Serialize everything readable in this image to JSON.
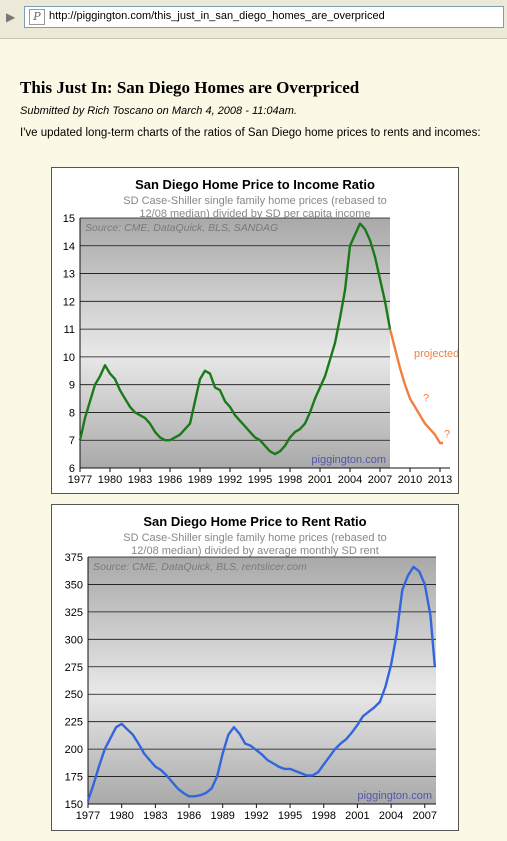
{
  "browser": {
    "url": "http://piggington.com/this_just_in_san_diego_homes_are_overpriced",
    "favicon_icon": "piggington-favicon-icon"
  },
  "post": {
    "title": "This Just In: San Diego Homes are Overpriced",
    "byline": "Submitted by Rich Toscano on March 4, 2008 - 11:04am.",
    "intro": "I've updated long-term charts of the ratios of San Diego home prices to rents and incomes:"
  },
  "chart_data": [
    {
      "type": "line",
      "title": "San Diego Home Price to Income Ratio",
      "subtitle": [
        "SD Case-Shiller single family home prices (rebased to",
        "12/08 median) divided by SD per capita income"
      ],
      "source_note": "Source: CME, DataQuick, BLS, SANDAG",
      "watermark": "piggington.com",
      "annotation": "projected",
      "question_marks": [
        "?",
        "?"
      ],
      "xlim": [
        1977,
        2014
      ],
      "ylim": [
        6,
        15
      ],
      "x_ticks": [
        "1977",
        "1980",
        "1983",
        "1986",
        "1989",
        "1992",
        "1995",
        "1998",
        "2001",
        "2004",
        "2007",
        "2010",
        "2013"
      ],
      "y_ticks": [
        "6",
        "7",
        "8",
        "9",
        "10",
        "11",
        "12",
        "13",
        "14",
        "15"
      ],
      "colors": {
        "history": "#1a7a1a",
        "projection": "#f08040",
        "plot_top": "#a9a9a9",
        "plot_mid": "#e8e8e8"
      },
      "series": [
        {
          "x": [
            1977.0,
            1977.5,
            1978.0,
            1978.5,
            1979.0,
            1979.5,
            1980.0,
            1980.5,
            1981.0,
            1981.5,
            1982.0,
            1982.5,
            1983.0,
            1983.5,
            1984.0,
            1984.5,
            1985.0,
            1985.5,
            1986.0,
            1986.5,
            1987.0,
            1987.5,
            1988.0,
            1988.5,
            1989.0,
            1989.5,
            1990.0,
            1990.5,
            1991.0,
            1991.5,
            1992.0,
            1992.5,
            1993.0,
            1993.5,
            1994.0,
            1994.5,
            1995.0,
            1995.5,
            1996.0,
            1996.5,
            1997.0,
            1997.5,
            1998.0,
            1998.5,
            1999.0,
            1999.5,
            2000.0,
            2000.5,
            2001.0,
            2001.5,
            2002.0,
            2002.5,
            2003.0,
            2003.5,
            2004.0,
            2004.5,
            2005.0,
            2005.5,
            2006.0,
            2006.5,
            2007.0,
            2007.5,
            2008.0
          ],
          "values": [
            7.0,
            7.8,
            8.4,
            9.0,
            9.3,
            9.7,
            9.4,
            9.2,
            8.8,
            8.5,
            8.2,
            8.0,
            7.9,
            7.8,
            7.6,
            7.3,
            7.1,
            7.0,
            7.0,
            7.1,
            7.2,
            7.4,
            7.6,
            8.4,
            9.2,
            9.5,
            9.4,
            8.9,
            8.8,
            8.4,
            8.2,
            7.9,
            7.7,
            7.5,
            7.3,
            7.1,
            7.0,
            6.8,
            6.6,
            6.5,
            6.6,
            6.8,
            7.1,
            7.3,
            7.4,
            7.6,
            8.0,
            8.5,
            8.9,
            9.3,
            9.9,
            10.5,
            11.4,
            12.4,
            14.0,
            14.4,
            14.8,
            14.6,
            14.2,
            13.6,
            12.8,
            12.0,
            11.0
          ]
        },
        {
          "x": [
            2008.0,
            2008.5,
            2009.0,
            2009.5,
            2010.0,
            2010.5,
            2011.0,
            2011.5,
            2012.0,
            2012.5,
            2013.0,
            2013.3
          ],
          "values": [
            11.0,
            10.3,
            9.6,
            9.0,
            8.5,
            8.2,
            7.9,
            7.6,
            7.4,
            7.2,
            6.9,
            6.9
          ]
        }
      ]
    },
    {
      "type": "line",
      "title": "San Diego Home Price to Rent Ratio",
      "subtitle": [
        "SD Case-Shiller single family home prices (rebased to",
        "12/08 median) divided by average monthly SD rent"
      ],
      "source_note": "Source: CME, DataQuick, BLS, rentslicer.com",
      "watermark": "piggington.com",
      "xlim": [
        1977,
        2008
      ],
      "ylim": [
        150,
        375
      ],
      "x_ticks": [
        "1977",
        "1980",
        "1983",
        "1986",
        "1989",
        "1992",
        "1995",
        "1998",
        "2001",
        "2004",
        "2007"
      ],
      "y_ticks": [
        "150",
        "175",
        "200",
        "225",
        "250",
        "275",
        "300",
        "325",
        "350",
        "375"
      ],
      "colors": {
        "history": "#3366dd",
        "plot_top": "#a9a9a9",
        "plot_mid": "#e8e8e8"
      },
      "series": [
        {
          "x": [
            1977.0,
            1977.5,
            1978.0,
            1978.5,
            1979.0,
            1979.5,
            1980.0,
            1980.5,
            1981.0,
            1981.5,
            1982.0,
            1982.5,
            1983.0,
            1983.5,
            1984.0,
            1984.5,
            1985.0,
            1985.5,
            1986.0,
            1986.5,
            1987.0,
            1987.5,
            1988.0,
            1988.5,
            1989.0,
            1989.5,
            1990.0,
            1990.5,
            1991.0,
            1991.5,
            1992.0,
            1992.5,
            1993.0,
            1993.5,
            1994.0,
            1994.5,
            1995.0,
            1995.5,
            1996.0,
            1996.5,
            1997.0,
            1997.5,
            1998.0,
            1998.5,
            1999.0,
            1999.5,
            2000.0,
            2000.5,
            2001.0,
            2001.5,
            2002.0,
            2002.5,
            2003.0,
            2003.5,
            2004.0,
            2004.5,
            2005.0,
            2005.5,
            2006.0,
            2006.5,
            2007.0,
            2007.5,
            2007.9
          ],
          "values": [
            153,
            168,
            185,
            200,
            210,
            220,
            223,
            218,
            213,
            205,
            196,
            190,
            184,
            181,
            176,
            170,
            164,
            160,
            157,
            157,
            158,
            160,
            164,
            175,
            196,
            213,
            220,
            214,
            205,
            203,
            199,
            195,
            190,
            187,
            184,
            182,
            182,
            180,
            178,
            176,
            176,
            179,
            186,
            193,
            200,
            205,
            209,
            215,
            222,
            230,
            234,
            238,
            243,
            257,
            277,
            305,
            345,
            358,
            366,
            362,
            350,
            322,
            275
          ]
        }
      ]
    }
  ]
}
